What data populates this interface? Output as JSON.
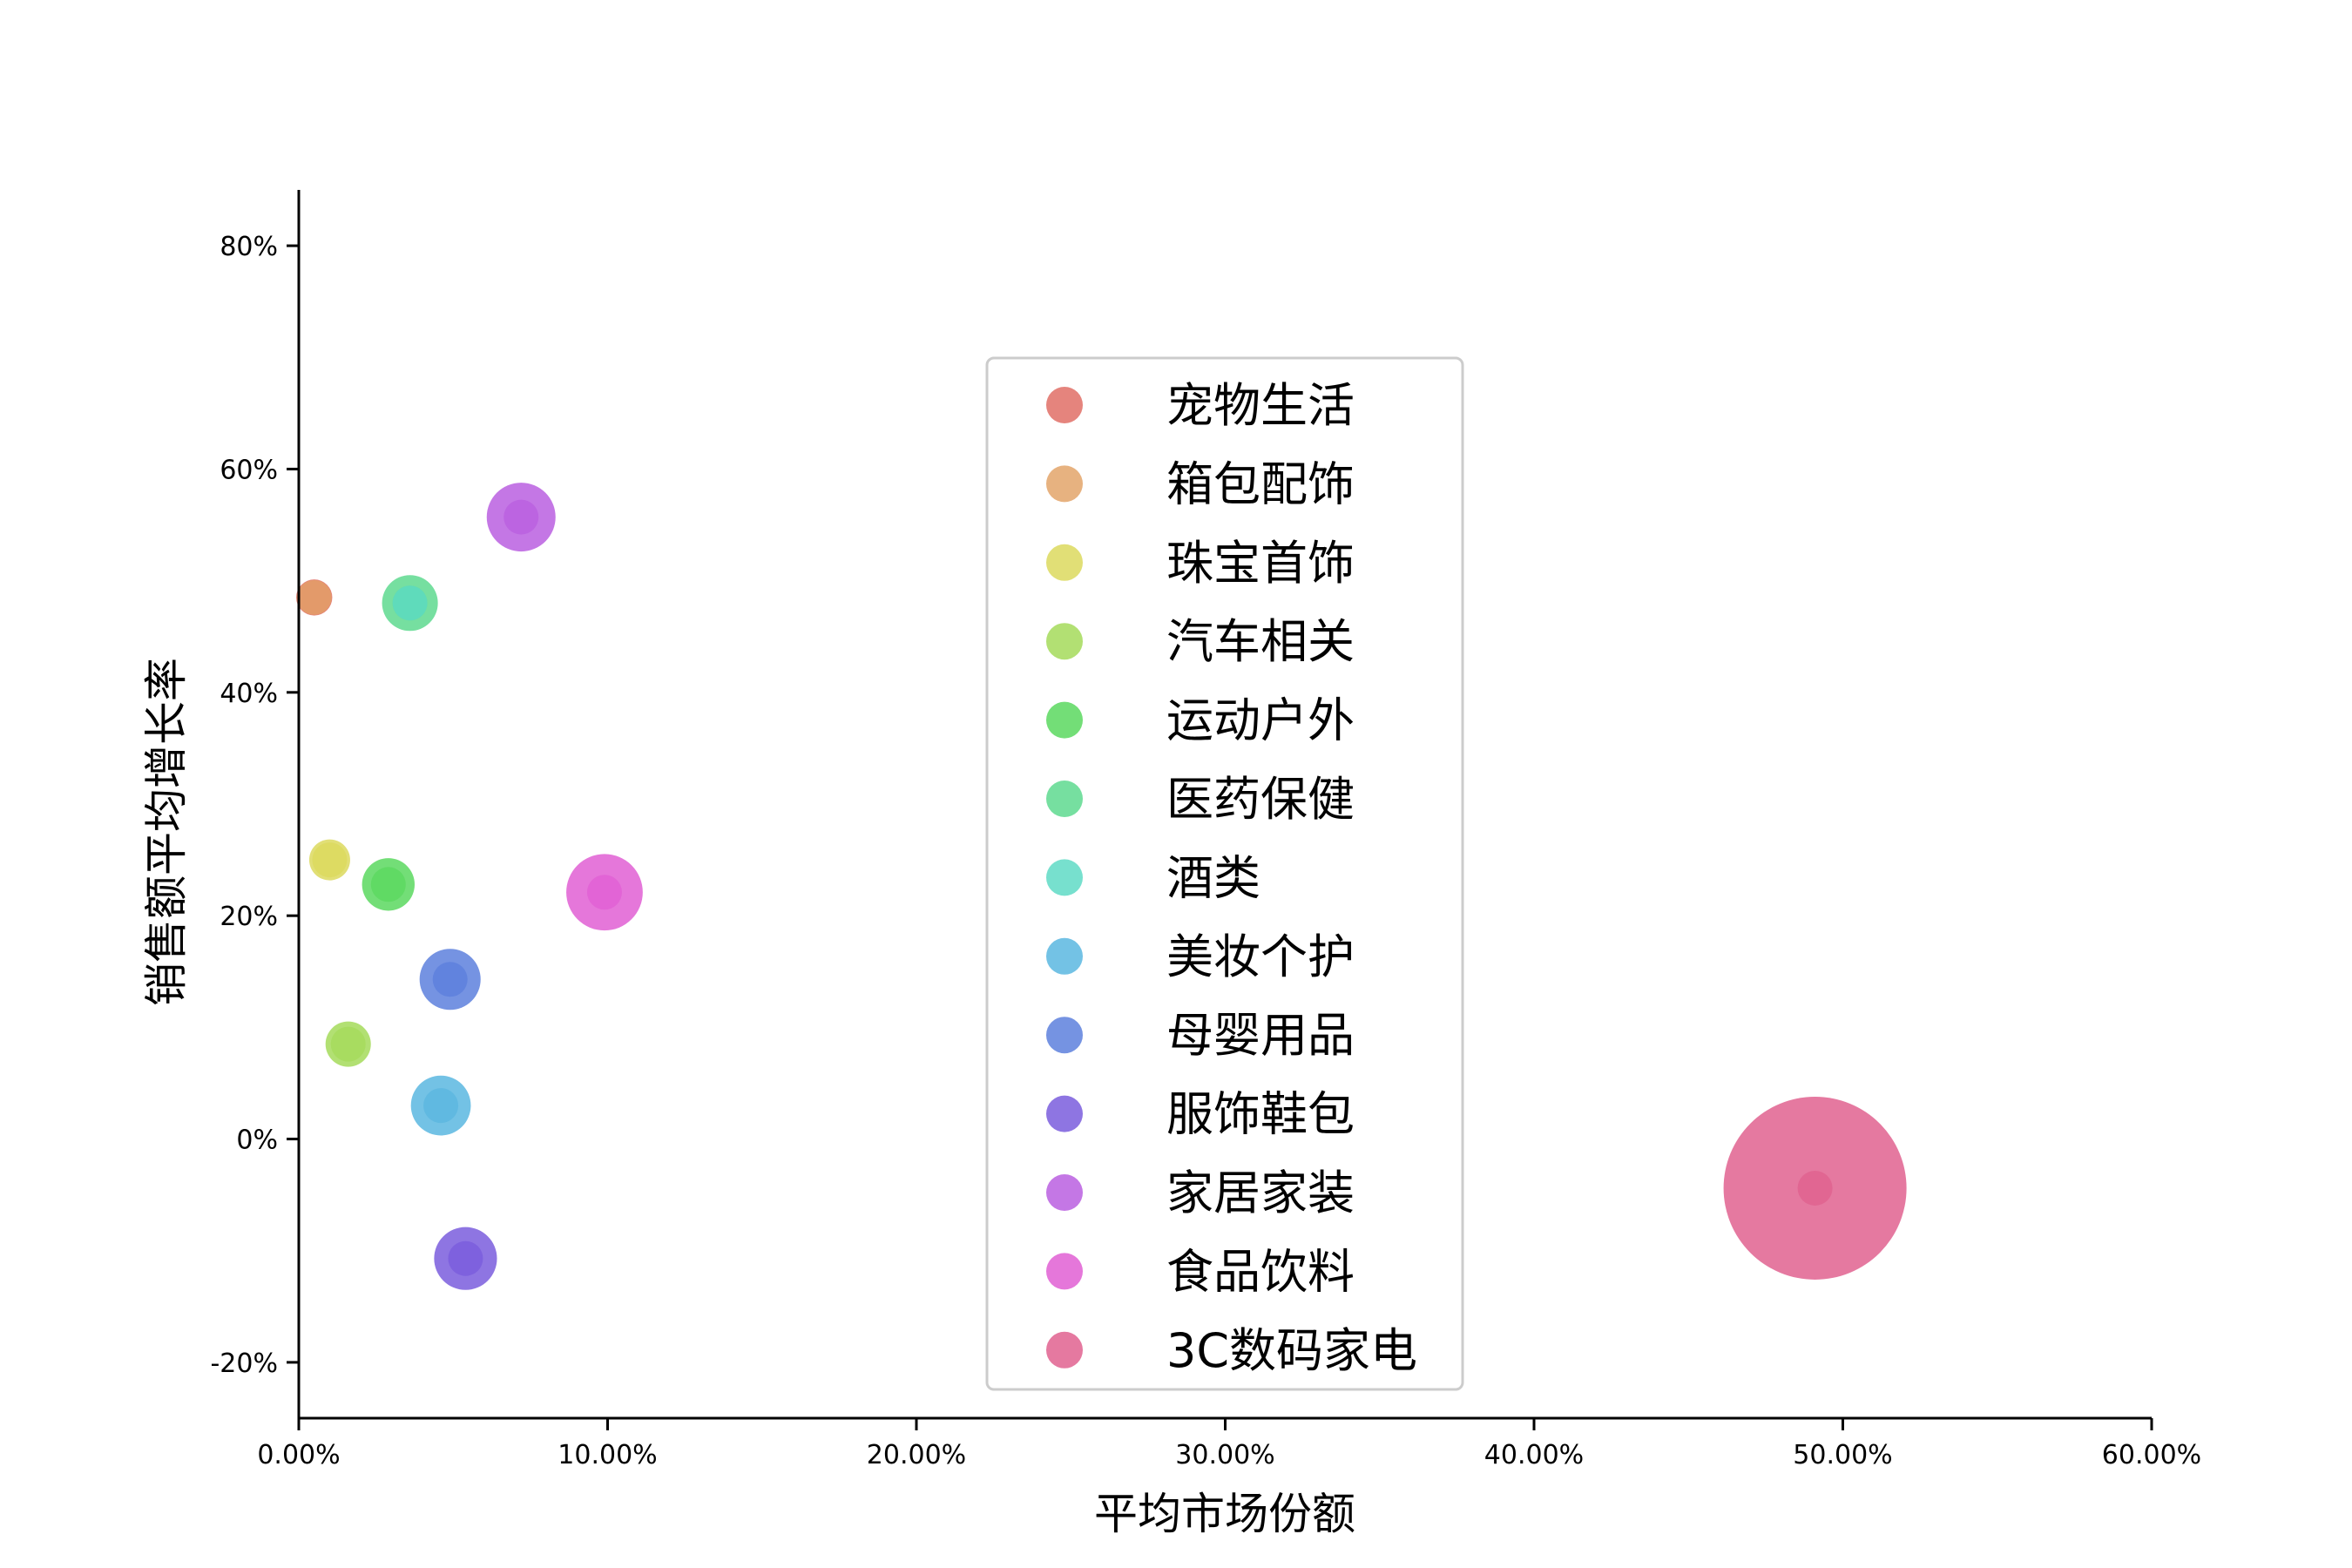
{
  "chart_data": {
    "type": "scatter",
    "variant": "bubble",
    "title": "",
    "xlabel": "平均市场份额",
    "ylabel": "销售额平均增长率",
    "xlim": [
      0,
      0.6
    ],
    "ylim": [
      -0.25,
      0.85
    ],
    "x_ticks": [
      0,
      0.1,
      0.2,
      0.3,
      0.4,
      0.5,
      0.6
    ],
    "x_tick_labels": [
      "0.00%",
      "10.00%",
      "20.00%",
      "30.00%",
      "40.00%",
      "50.00%",
      "60.00%"
    ],
    "y_ticks": [
      -0.2,
      0,
      0.2,
      0.4,
      0.6,
      0.8
    ],
    "y_tick_labels": [
      "-20%",
      "0%",
      "20%",
      "40%",
      "60%",
      "80%"
    ],
    "grid": false,
    "legend_position": "center",
    "series": [
      {
        "name": "宠物生活",
        "color": "#e06e66",
        "x": 0.005,
        "y": 0.485,
        "size": 0.005
      },
      {
        "name": "箱包配饰",
        "color": "#e3a46a",
        "x": 0.005,
        "y": 0.485,
        "size": 0.0
      },
      {
        "name": "珠宝首饰",
        "color": "#dcd95e",
        "x": 0.01,
        "y": 0.25,
        "size": 0.01
      },
      {
        "name": "汽车相关",
        "color": "#a5db5b",
        "x": 0.016,
        "y": 0.085,
        "size": 0.016
      },
      {
        "name": "运动户外",
        "color": "#5bd85f",
        "x": 0.029,
        "y": 0.228,
        "size": 0.029
      },
      {
        "name": "医药保健",
        "color": "#5ed98f",
        "x": 0.036,
        "y": 0.48,
        "size": 0.036
      },
      {
        "name": "酒类",
        "color": "#5fdbc6",
        "x": 0.036,
        "y": 0.48,
        "size": 0.0
      },
      {
        "name": "美妆个护",
        "color": "#5bb7e0",
        "x": 0.046,
        "y": 0.03,
        "size": 0.046
      },
      {
        "name": "母婴用品",
        "color": "#5d80dd",
        "x": 0.049,
        "y": 0.143,
        "size": 0.049
      },
      {
        "name": "服饰鞋包",
        "color": "#7a5ddd",
        "x": 0.054,
        "y": -0.107,
        "size": 0.054
      },
      {
        "name": "家居家装",
        "color": "#ba5fe0",
        "x": 0.072,
        "y": 0.557,
        "size": 0.072
      },
      {
        "name": "食品饮料",
        "color": "#e15fd4",
        "x": 0.099,
        "y": 0.221,
        "size": 0.099
      },
      {
        "name": "3C数码家电",
        "color": "#e0628f",
        "x": 0.491,
        "y": -0.044,
        "size": 0.491
      }
    ]
  }
}
